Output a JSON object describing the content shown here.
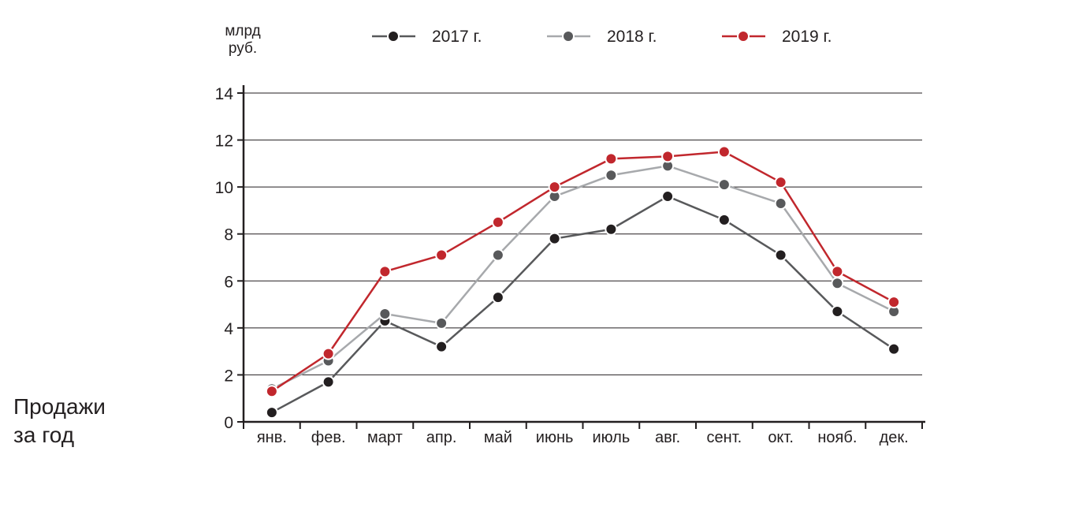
{
  "caption": {
    "line1": "Продажи",
    "line2": "за год"
  },
  "chart_data": {
    "type": "line",
    "title": "",
    "unit_label_line1": "млрд",
    "unit_label_line2": "руб.",
    "xlabel": "",
    "ylabel": "млрд руб.",
    "ylim": [
      0,
      14
    ],
    "yticks": [
      0,
      2,
      4,
      6,
      8,
      10,
      12,
      14
    ],
    "grid": true,
    "legend_position": "top",
    "categories": [
      "янв.",
      "фев.",
      "март",
      "апр.",
      "май",
      "июнь",
      "июль",
      "авг.",
      "сент.",
      "окт.",
      "нояб.",
      "дек."
    ],
    "series": [
      {
        "name": "2017 г.",
        "color": "#231f20",
        "line_color": "#58595b",
        "values": [
          0.4,
          1.7,
          4.3,
          3.2,
          5.3,
          7.8,
          8.2,
          9.6,
          8.6,
          7.1,
          4.7,
          3.1
        ]
      },
      {
        "name": "2018 г.",
        "color": "#58595b",
        "line_color": "#a7a9ac",
        "values": [
          1.4,
          2.6,
          4.6,
          4.2,
          7.1,
          9.6,
          10.5,
          10.9,
          10.1,
          9.3,
          5.9,
          4.7
        ]
      },
      {
        "name": "2019 г.",
        "color": "#c1272d",
        "line_color": "#c1272d",
        "values": [
          1.3,
          2.9,
          6.4,
          7.1,
          8.5,
          10.0,
          11.2,
          11.3,
          11.5,
          10.2,
          6.4,
          5.1
        ]
      }
    ]
  }
}
